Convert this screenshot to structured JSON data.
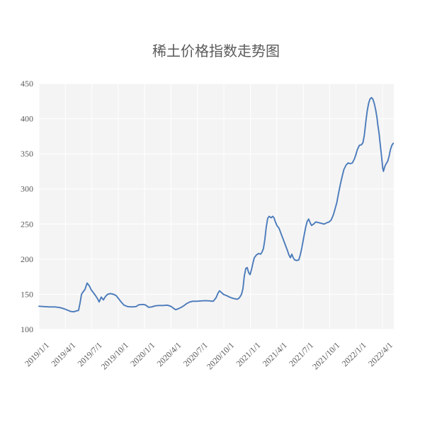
{
  "title": "稀土价格指数走势图",
  "chart_data": {
    "type": "line",
    "title": "稀土价格指数走势图",
    "x_tick_labels": [
      "2019/1/1",
      "2019/4/1",
      "2019/7/1",
      "2019/10/1",
      "2020/1/1",
      "2020/4/1",
      "2020/7/1",
      "2020/10/1",
      "2021/1/1",
      "2021/4/1",
      "2021/7/1",
      "2021/10/1",
      "2022/1/1",
      "2022/4/1"
    ],
    "x_unit": "months since 2019/1/1 (ticks every 3 months)",
    "y_ticks": [
      100,
      150,
      200,
      250,
      300,
      350,
      400,
      450
    ],
    "ylim": [
      100,
      450
    ],
    "grid": true,
    "legend": "none",
    "colors": {
      "line": "#4b7bbb",
      "plot_background": "#f4f4f4",
      "gridline": "#ffffff",
      "text": "#595959"
    },
    "points": [
      [
        0,
        133
      ],
      [
        0.56,
        132.5
      ],
      [
        1.21,
        132
      ],
      [
        1.85,
        132
      ],
      [
        2.41,
        131
      ],
      [
        2.82,
        129.5
      ],
      [
        3.22,
        127.5
      ],
      [
        3.62,
        125.5
      ],
      [
        3.94,
        125
      ],
      [
        4.18,
        126
      ],
      [
        4.5,
        127
      ],
      [
        4.67,
        138
      ],
      [
        4.83,
        150
      ],
      [
        4.99,
        153
      ],
      [
        5.23,
        157
      ],
      [
        5.47,
        166
      ],
      [
        5.71,
        162
      ],
      [
        5.95,
        156
      ],
      [
        6.19,
        152
      ],
      [
        6.43,
        148
      ],
      [
        6.68,
        143
      ],
      [
        6.84,
        139
      ],
      [
        7.08,
        146
      ],
      [
        7.32,
        142
      ],
      [
        7.56,
        147
      ],
      [
        7.8,
        150
      ],
      [
        8.12,
        151
      ],
      [
        8.45,
        150
      ],
      [
        8.77,
        148
      ],
      [
        9.09,
        143
      ],
      [
        9.33,
        139
      ],
      [
        9.65,
        134.5
      ],
      [
        10.05,
        132.5
      ],
      [
        10.54,
        132
      ],
      [
        11.02,
        132.5
      ],
      [
        11.34,
        135
      ],
      [
        11.74,
        135.5
      ],
      [
        12.06,
        135
      ],
      [
        12.47,
        131.5
      ],
      [
        12.79,
        132
      ],
      [
        13.19,
        133.5
      ],
      [
        13.59,
        134
      ],
      [
        14.08,
        134
      ],
      [
        14.56,
        134.5
      ],
      [
        14.96,
        133
      ],
      [
        15.28,
        130
      ],
      [
        15.52,
        128
      ],
      [
        15.84,
        129.5
      ],
      [
        16.17,
        131.5
      ],
      [
        16.49,
        134
      ],
      [
        16.81,
        137
      ],
      [
        17.13,
        139
      ],
      [
        17.45,
        140
      ],
      [
        17.94,
        140
      ],
      [
        18.42,
        140.5
      ],
      [
        18.9,
        141
      ],
      [
        19.38,
        140.5
      ],
      [
        19.79,
        140
      ],
      [
        20.11,
        145
      ],
      [
        20.35,
        152
      ],
      [
        20.51,
        155
      ],
      [
        20.75,
        152
      ],
      [
        20.99,
        149.5
      ],
      [
        21.31,
        148
      ],
      [
        21.63,
        146
      ],
      [
        21.96,
        144.5
      ],
      [
        22.28,
        143.5
      ],
      [
        22.52,
        143
      ],
      [
        22.76,
        145
      ],
      [
        23,
        150
      ],
      [
        23.16,
        158
      ],
      [
        23.32,
        176
      ],
      [
        23.49,
        187
      ],
      [
        23.65,
        188
      ],
      [
        23.81,
        181
      ],
      [
        23.97,
        178
      ],
      [
        24.13,
        185
      ],
      [
        24.29,
        194
      ],
      [
        24.45,
        202
      ],
      [
        24.69,
        206
      ],
      [
        24.93,
        208
      ],
      [
        25.17,
        207
      ],
      [
        25.33,
        210
      ],
      [
        25.49,
        215
      ],
      [
        25.65,
        228
      ],
      [
        25.81,
        246
      ],
      [
        25.97,
        258
      ],
      [
        26.13,
        261
      ],
      [
        26.37,
        259
      ],
      [
        26.53,
        261
      ],
      [
        26.69,
        259
      ],
      [
        26.85,
        253
      ],
      [
        27.02,
        248
      ],
      [
        27.26,
        244
      ],
      [
        27.5,
        236
      ],
      [
        27.74,
        228
      ],
      [
        27.98,
        220
      ],
      [
        28.22,
        212
      ],
      [
        28.38,
        206
      ],
      [
        28.55,
        202
      ],
      [
        28.71,
        207
      ],
      [
        28.87,
        202
      ],
      [
        29.03,
        199
      ],
      [
        29.27,
        198
      ],
      [
        29.51,
        199
      ],
      [
        29.67,
        206
      ],
      [
        29.83,
        215
      ],
      [
        29.99,
        226
      ],
      [
        30.15,
        237
      ],
      [
        30.31,
        247
      ],
      [
        30.47,
        254
      ],
      [
        30.63,
        257
      ],
      [
        30.79,
        252
      ],
      [
        30.95,
        248
      ],
      [
        31.19,
        250
      ],
      [
        31.43,
        253
      ],
      [
        31.75,
        252
      ],
      [
        32.07,
        251
      ],
      [
        32.39,
        250
      ],
      [
        32.71,
        252
      ],
      [
        32.95,
        253
      ],
      [
        33.19,
        256
      ],
      [
        33.43,
        263
      ],
      [
        33.59,
        270
      ],
      [
        33.83,
        281
      ],
      [
        33.99,
        292
      ],
      [
        34.23,
        307
      ],
      [
        34.47,
        320
      ],
      [
        34.63,
        328
      ],
      [
        34.87,
        334
      ],
      [
        35.11,
        337
      ],
      [
        35.35,
        336
      ],
      [
        35.59,
        337
      ],
      [
        35.83,
        343
      ],
      [
        35.99,
        349
      ],
      [
        36.15,
        356
      ],
      [
        36.39,
        362
      ],
      [
        36.63,
        363
      ],
      [
        36.79,
        366
      ],
      [
        36.95,
        377
      ],
      [
        37.11,
        395
      ],
      [
        37.27,
        411
      ],
      [
        37.43,
        422
      ],
      [
        37.59,
        428
      ],
      [
        37.75,
        430
      ],
      [
        37.91,
        428
      ],
      [
        38.07,
        422
      ],
      [
        38.23,
        413
      ],
      [
        38.39,
        401
      ],
      [
        38.47,
        392
      ],
      [
        38.63,
        378
      ],
      [
        38.71,
        368
      ],
      [
        38.87,
        350
      ],
      [
        38.95,
        340
      ],
      [
        39.03,
        330
      ],
      [
        39.11,
        325
      ],
      [
        39.27,
        332
      ],
      [
        39.43,
        336
      ],
      [
        39.59,
        339
      ],
      [
        39.75,
        346
      ],
      [
        39.91,
        356
      ],
      [
        40.07,
        362
      ],
      [
        40.23,
        365
      ]
    ]
  }
}
